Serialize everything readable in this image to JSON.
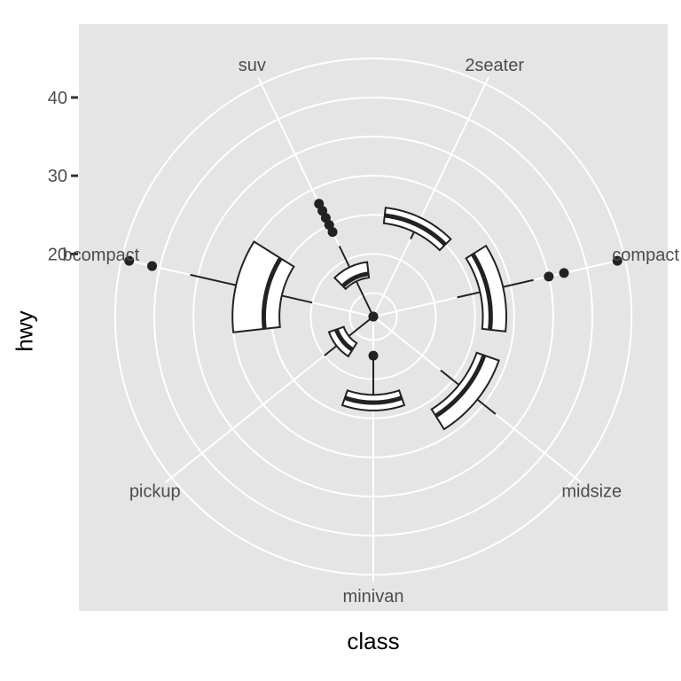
{
  "chart_data": {
    "type": "boxplot",
    "coord": "polar",
    "title": "",
    "xlabel": "class",
    "ylabel": "hwy",
    "categories": [
      "2seater",
      "compact",
      "midsize",
      "minivan",
      "pickup",
      "subcompact",
      "suv"
    ],
    "angle_labels": [
      "2seater",
      "compact",
      "midsize",
      "minivan",
      "pickup",
      "bcompact",
      "suv"
    ],
    "r_ticks": [
      20,
      30,
      40
    ],
    "r_range": [
      12,
      46
    ],
    "grid": true,
    "panel_background": "#e5e5e5",
    "box_fill": "#ffffff",
    "line_color": "#222222",
    "boxes": [
      {
        "category": "2seater",
        "lower_whisker": 23,
        "q1": 24,
        "median": 25,
        "q3": 26,
        "upper_whisker": 26,
        "outliers": []
      },
      {
        "category": "compact",
        "lower_whisker": 23,
        "q1": 26,
        "median": 27,
        "q3": 29,
        "upper_whisker": 33,
        "outliers": [
          35,
          37,
          44
        ]
      },
      {
        "category": "midsize",
        "lower_whisker": 23,
        "q1": 26,
        "median": 27,
        "q3": 29,
        "upper_whisker": 32,
        "outliers": []
      },
      {
        "category": "minivan",
        "lower_whisker": 17,
        "q1": 22,
        "median": 23,
        "q3": 24,
        "upper_whisker": 24,
        "outliers": [
          17
        ]
      },
      {
        "category": "pickup",
        "lower_whisker": 12,
        "q1": 16,
        "median": 17,
        "q3": 18,
        "upper_whisker": 20,
        "outliers": [
          12
        ]
      },
      {
        "category": "subcompact",
        "lower_whisker": 20,
        "q1": 24,
        "median": 26,
        "q3": 30,
        "upper_whisker": 36,
        "outliers": [
          41,
          44
        ]
      },
      {
        "category": "suv",
        "lower_whisker": 12,
        "q1": 17,
        "median": 17.5,
        "q3": 19,
        "upper_whisker": 22,
        "outliers": [
          12,
          24,
          25,
          26,
          27,
          28
        ]
      }
    ]
  }
}
